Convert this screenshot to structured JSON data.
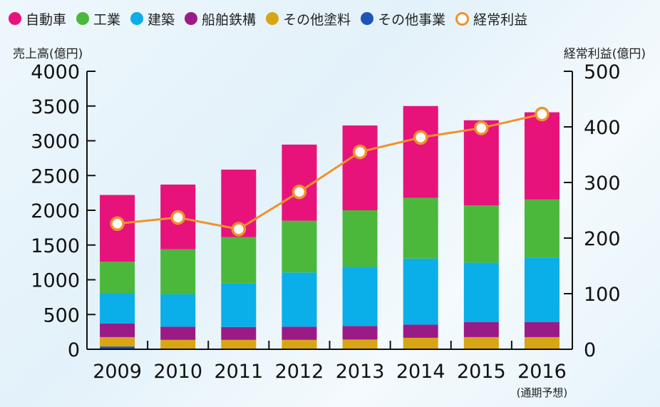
{
  "legend": [
    {
      "label": "自動車",
      "color": "#e8127b"
    },
    {
      "label": "工業",
      "color": "#4bb83c"
    },
    {
      "label": "建築",
      "color": "#0aaee8"
    },
    {
      "label": "船舶鉄構",
      "color": "#9b1b86"
    },
    {
      "label": "その他塗料",
      "color": "#d8a614"
    },
    {
      "label": "その他事業",
      "color": "#1f55b5"
    },
    {
      "label": "経常利益",
      "color": "#f0922b"
    }
  ],
  "chart_data": {
    "type": "bar",
    "stacked": true,
    "categories": [
      "2009",
      "2010",
      "2011",
      "2012",
      "2013",
      "2014",
      "2015",
      "2016"
    ],
    "category_note": "(通期予想)",
    "ylabel": "売上高(億円)",
    "y2label": "経常利益(億円)",
    "ylim": [
      0,
      4000
    ],
    "y_ticks": [
      0,
      500,
      1000,
      1500,
      2000,
      2500,
      3000,
      3500,
      4000
    ],
    "y2lim": [
      0,
      500
    ],
    "y2_ticks": [
      0,
      100,
      200,
      300,
      400,
      500
    ],
    "series": [
      {
        "name": "その他事業",
        "color": "#1f55b5",
        "values": [
          40,
          0,
          0,
          0,
          0,
          0,
          0,
          0
        ]
      },
      {
        "name": "その他塗料",
        "color": "#d8a614",
        "values": [
          135,
          135,
          135,
          135,
          140,
          165,
          175,
          175
        ]
      },
      {
        "name": "船舶鉄構",
        "color": "#9b1b86",
        "values": [
          195,
          190,
          185,
          190,
          195,
          190,
          215,
          215
        ]
      },
      {
        "name": "建築",
        "color": "#0aaee8",
        "values": [
          440,
          465,
          625,
          780,
          850,
          950,
          855,
          930
        ]
      },
      {
        "name": "工業",
        "color": "#4bb83c",
        "values": [
          450,
          650,
          670,
          745,
          815,
          875,
          825,
          835
        ]
      },
      {
        "name": "自動車",
        "color": "#e8127b",
        "values": [
          960,
          930,
          970,
          1095,
          1220,
          1320,
          1225,
          1255
        ]
      }
    ],
    "line_series": {
      "name": "経常利益",
      "color": "#f0922b",
      "axis": "right",
      "values": [
        226,
        237,
        216,
        283,
        355,
        381,
        398,
        423
      ]
    },
    "grid": false,
    "legend_position": "top"
  }
}
